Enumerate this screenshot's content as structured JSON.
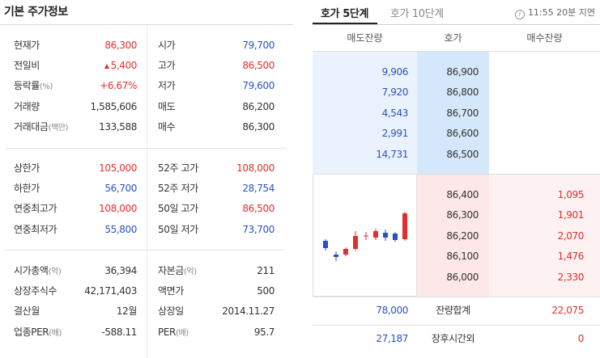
{
  "left": {
    "title": "기본 주가정보",
    "group1": [
      {
        "l1": "현재가",
        "u1": "",
        "v1": "86,300",
        "c1": "red",
        "l2": "시가",
        "u2": "",
        "v2": "79,700",
        "c2": "blue"
      },
      {
        "l1": "전일비",
        "u1": "",
        "v1": "5,400",
        "c1": "red",
        "tri": "▲",
        "l2": "고가",
        "u2": "",
        "v2": "86,500",
        "c2": "red"
      },
      {
        "l1": "등락률",
        "u1": "(%)",
        "v1": "+6.67%",
        "c1": "red",
        "l2": "저가",
        "u2": "",
        "v2": "79,600",
        "c2": "blue"
      },
      {
        "l1": "거래량",
        "u1": "",
        "v1": "1,585,606",
        "c1": "dark",
        "l2": "매도",
        "u2": "",
        "v2": "86,200",
        "c2": "dark"
      },
      {
        "l1": "거래대금",
        "u1": "(백만)",
        "v1": "133,588",
        "c1": "dark",
        "l2": "매수",
        "u2": "",
        "v2": "86,300",
        "c2": "dark"
      }
    ],
    "group2": [
      {
        "l1": "상한가",
        "u1": "",
        "v1": "105,000",
        "c1": "red",
        "l2": "52주 고가",
        "u2": "",
        "v2": "108,000",
        "c2": "red"
      },
      {
        "l1": "하한가",
        "u1": "",
        "v1": "56,700",
        "c1": "blue",
        "l2": "52주 저가",
        "u2": "",
        "v2": "28,754",
        "c2": "blue"
      },
      {
        "l1": "연중최고가",
        "u1": "",
        "v1": "108,000",
        "c1": "red",
        "l2": "50일 고가",
        "u2": "",
        "v2": "86,500",
        "c2": "red"
      },
      {
        "l1": "연중최저가",
        "u1": "",
        "v1": "55,800",
        "c1": "blue",
        "l2": "50일 저가",
        "u2": "",
        "v2": "73,700",
        "c2": "blue"
      }
    ],
    "group3": [
      {
        "l1": "시가총액",
        "u1": "(억)",
        "v1": "36,394",
        "c1": "dark",
        "l2": "자본금",
        "u2": "(억)",
        "v2": "211",
        "c2": "dark"
      },
      {
        "l1": "상장주식수",
        "u1": "",
        "v1": "42,171,403",
        "c1": "dark",
        "l2": "액면가",
        "u2": "",
        "v2": "500",
        "c2": "dark"
      },
      {
        "l1": "결산월",
        "u1": "",
        "v1": "12월",
        "c1": "dark",
        "l2": "상장일",
        "u2": "",
        "v2": "2014.11.27",
        "c2": "dark"
      },
      {
        "l1": "업종PER",
        "u1": "(배)",
        "v1": "-588.11",
        "c1": "dark",
        "l2": "PER",
        "u2": "(배)",
        "v2": "95.7",
        "c2": "dark"
      }
    ]
  },
  "right": {
    "tabs": [
      "호가 5단계",
      "호가 10단계"
    ],
    "info_icon": "info-icon",
    "time": "11:55 20분 지연",
    "headers": [
      "매도잔량",
      "호가",
      "매수잔량"
    ],
    "sell": [
      {
        "vol": "9,906",
        "price": "86,900"
      },
      {
        "vol": "7,920",
        "price": "86,800"
      },
      {
        "vol": "4,543",
        "price": "86,700"
      },
      {
        "vol": "2,991",
        "price": "86,600"
      },
      {
        "vol": "14,731",
        "price": "86,500"
      }
    ],
    "buy": [
      {
        "price": "86,400",
        "vol": "1,095"
      },
      {
        "price": "86,300",
        "vol": "1,901"
      },
      {
        "price": "86,200",
        "vol": "2,070"
      },
      {
        "price": "86,100",
        "vol": "1,476"
      },
      {
        "price": "86,000",
        "vol": "2,330"
      }
    ],
    "summary": [
      {
        "left": "78,000",
        "label": "잔량합계",
        "right": "22,075"
      },
      {
        "left": "27,187",
        "label": "장후시간외",
        "right": "0"
      }
    ],
    "colors": {
      "up": "#e0302f",
      "down": "#2b52c0",
      "sell_bg": "#d5e8fb",
      "buy_bg": "#fde7e8"
    }
  }
}
